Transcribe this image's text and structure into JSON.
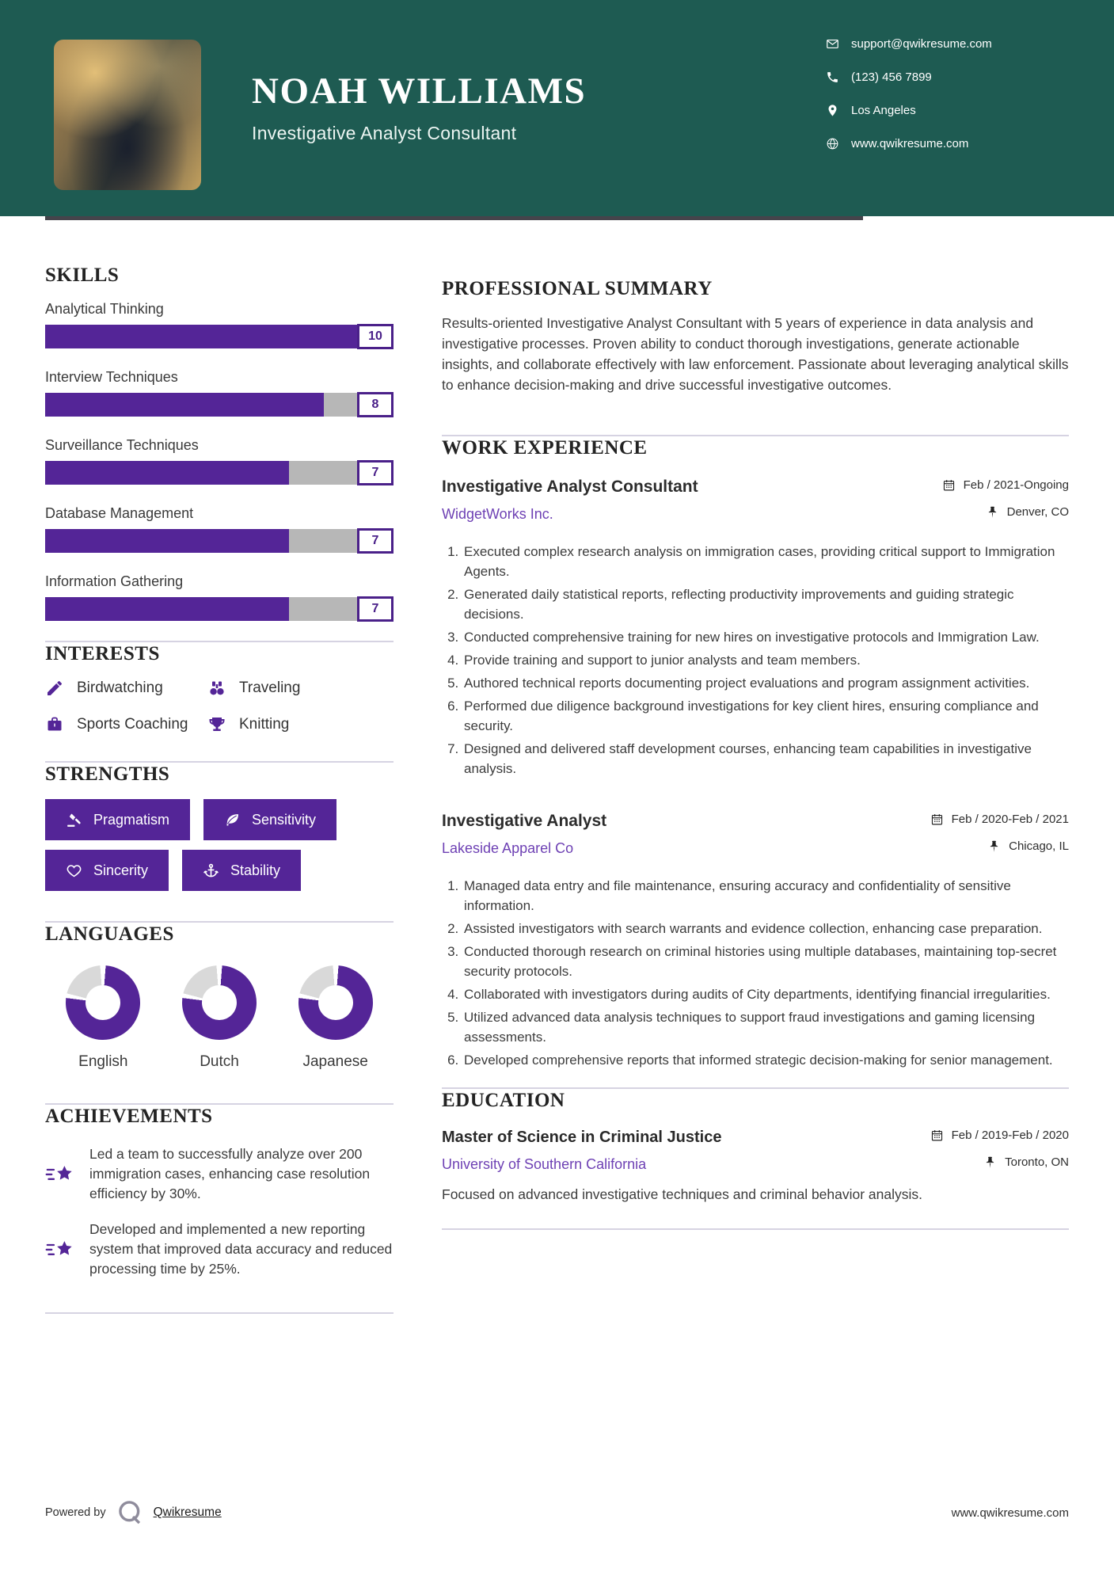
{
  "header": {
    "name": "NOAH WILLIAMS",
    "title": "Investigative Analyst Consultant",
    "contact": [
      {
        "icon": "email-icon",
        "text": "support@qwikresume.com"
      },
      {
        "icon": "phone-icon",
        "text": "(123) 456 7899"
      },
      {
        "icon": "location-icon",
        "text": "Los Angeles"
      },
      {
        "icon": "globe-icon",
        "text": "www.qwikresume.com"
      }
    ]
  },
  "skills": {
    "heading": "SKILLS",
    "max": 10,
    "items": [
      {
        "label": "Analytical Thinking",
        "value": 10
      },
      {
        "label": "Interview Techniques",
        "value": 8
      },
      {
        "label": "Surveillance Techniques",
        "value": 7
      },
      {
        "label": "Database Management",
        "value": 7
      },
      {
        "label": "Information Gathering",
        "value": 7
      }
    ]
  },
  "interests": {
    "heading": "INTERESTS",
    "items": [
      {
        "icon": "pencil-icon",
        "label": "Birdwatching"
      },
      {
        "icon": "binoculars-icon",
        "label": "Traveling"
      },
      {
        "icon": "briefcase-icon",
        "label": "Sports Coaching"
      },
      {
        "icon": "trophy-icon",
        "label": "Knitting"
      }
    ]
  },
  "strengths": {
    "heading": "STRENGTHS",
    "items": [
      {
        "icon": "gavel-icon",
        "label": "Pragmatism"
      },
      {
        "icon": "leaf-icon",
        "label": "Sensitivity"
      },
      {
        "icon": "heart-icon",
        "label": "Sincerity"
      },
      {
        "icon": "anchor-icon",
        "label": "Stability"
      }
    ]
  },
  "languages": {
    "heading": "LANGUAGES",
    "items": [
      {
        "label": "English",
        "level_percent": 78
      },
      {
        "label": "Dutch",
        "level_percent": 78
      },
      {
        "label": "Japanese",
        "level_percent": 78
      }
    ]
  },
  "achievements": {
    "heading": "ACHIEVEMENTS",
    "items": [
      {
        "icon": "shooting-star-icon",
        "text": "Led a team to successfully analyze over 200 immigration cases, enhancing case resolution efficiency by 30%."
      },
      {
        "icon": "shooting-star-icon",
        "text": "Developed and implemented a new reporting system that improved data accuracy and reduced processing time by 25%."
      }
    ]
  },
  "summary": {
    "heading": "PROFESSIONAL SUMMARY",
    "text": "Results-oriented Investigative Analyst Consultant with 5 years of experience in data analysis and investigative processes. Proven ability to conduct thorough investigations, generate actionable insights, and collaborate effectively with law enforcement. Passionate about leveraging analytical skills to enhance decision-making and drive successful investigative outcomes."
  },
  "experience": {
    "heading": "WORK EXPERIENCE",
    "jobs": [
      {
        "title": "Investigative Analyst Consultant",
        "company": "WidgetWorks Inc.",
        "dates": "Feb / 2021-Ongoing",
        "location": "Denver, CO",
        "bullets": [
          "Executed complex research analysis on immigration cases, providing critical support to Immigration Agents.",
          "Generated daily statistical reports, reflecting productivity improvements and guiding strategic decisions.",
          "Conducted comprehensive training for new hires on investigative protocols and Immigration Law.",
          "Provide training and support to junior analysts and team members.",
          "Authored technical reports documenting project evaluations and program assignment activities.",
          "Performed due diligence background investigations for key client hires, ensuring compliance and security.",
          "Designed and delivered staff development courses, enhancing team capabilities in investigative analysis."
        ]
      },
      {
        "title": "Investigative Analyst",
        "company": "Lakeside Apparel Co",
        "dates": "Feb / 2020-Feb / 2021",
        "location": "Chicago, IL",
        "bullets": [
          "Managed data entry and file maintenance, ensuring accuracy and confidentiality of sensitive information.",
          "Assisted investigators with search warrants and evidence collection, enhancing case preparation.",
          "Conducted thorough research on criminal histories using multiple databases, maintaining top-secret security protocols.",
          "Collaborated with investigators during audits of City departments, identifying financial irregularities.",
          "Utilized advanced data analysis techniques to support fraud investigations and gaming licensing assessments.",
          "Developed comprehensive reports that informed strategic decision-making for senior management."
        ]
      }
    ]
  },
  "education": {
    "heading": "EDUCATION",
    "degree": "Master of Science in Criminal Justice",
    "school": "University of Southern California",
    "dates": "Feb / 2019-Feb / 2020",
    "location": "Toronto, ON",
    "description": "Focused on advanced investigative techniques and criminal behavior analysis."
  },
  "footer": {
    "powered_by": "Powered by",
    "brand": "Qwikresume",
    "website": "www.qwikresume.com"
  },
  "colors": {
    "header_bg": "#1E5B52",
    "accent_purple": "#542597",
    "accent_purple_dark": "#4A2089",
    "link_purple": "#6E41B4",
    "bar_track": "#B7B7B7",
    "donut_track": "#D9D9D9",
    "divider": "#D6D3E2"
  }
}
